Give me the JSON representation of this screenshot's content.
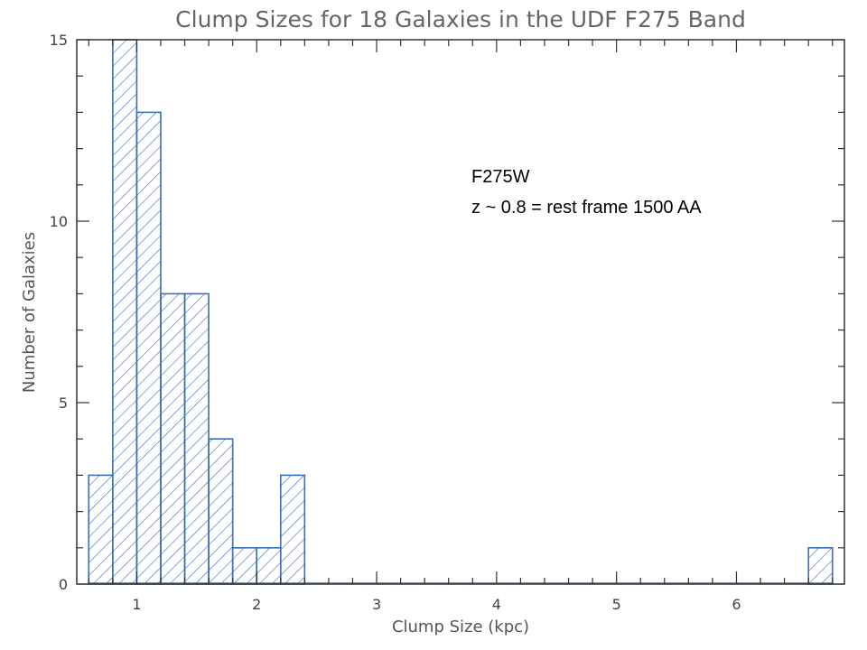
{
  "chart_data": {
    "type": "bar",
    "title": "Clump Sizes for 18 Galaxies in the UDF F275 Band",
    "xlabel": "Clump Size (kpc)",
    "ylabel": "Number of Galaxies",
    "xlim": [
      0.5,
      6.9
    ],
    "ylim": [
      0,
      15
    ],
    "bin_width": 0.2,
    "bins": [
      {
        "x0": 0.6,
        "x1": 0.8,
        "value": 3
      },
      {
        "x0": 0.8,
        "x1": 1.0,
        "value": 15
      },
      {
        "x0": 1.0,
        "x1": 1.2,
        "value": 13
      },
      {
        "x0": 1.2,
        "x1": 1.4,
        "value": 8
      },
      {
        "x0": 1.4,
        "x1": 1.6,
        "value": 8
      },
      {
        "x0": 1.6,
        "x1": 1.8,
        "value": 4
      },
      {
        "x0": 1.8,
        "x1": 2.0,
        "value": 1
      },
      {
        "x0": 2.0,
        "x1": 2.2,
        "value": 1
      },
      {
        "x0": 2.2,
        "x1": 2.4,
        "value": 3
      },
      {
        "x0": 6.6,
        "x1": 6.8,
        "value": 1
      }
    ],
    "baseline_range": [
      0.6,
      6.8
    ],
    "xticks": [
      1,
      2,
      3,
      4,
      5,
      6
    ],
    "xtick_labels": [
      "1",
      "2",
      "3",
      "4",
      "5",
      "6"
    ],
    "yticks": [
      0,
      5,
      10,
      15
    ],
    "ytick_labels": [
      "0",
      "5",
      "10",
      "15"
    ],
    "annotations": [
      "F275W",
      "z ~ 0.8 = rest frame 1500 AA"
    ],
    "colors": {
      "bar": "#3a6fb5",
      "frame": "#333333"
    },
    "grid": false
  }
}
